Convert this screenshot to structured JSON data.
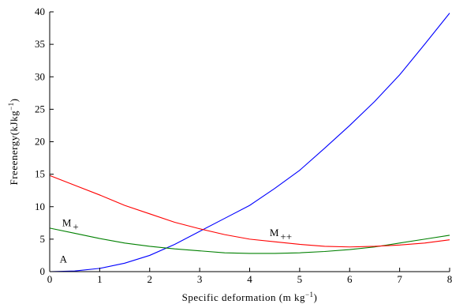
{
  "chart_data": {
    "type": "line",
    "xlabel": {
      "main": "Specific deformation (m kg",
      "sup": "−1",
      "close": ")"
    },
    "ylabel": {
      "main": "Freeenergy(kJkg",
      "sup": "−1",
      "close": ")"
    },
    "xlim": [
      0,
      8
    ],
    "ylim": [
      0,
      40
    ],
    "xticks": [
      0,
      1,
      2,
      3,
      4,
      5,
      6,
      7,
      8
    ],
    "yticks": [
      0,
      5,
      10,
      15,
      20,
      25,
      30,
      35,
      40
    ],
    "grid": false,
    "series": [
      {
        "name": "A",
        "color": "#0000ff",
        "x": [
          0,
          0.5,
          1,
          1.5,
          2,
          2.5,
          3,
          3.5,
          4,
          4.5,
          5,
          5.5,
          6,
          6.5,
          7,
          7.5,
          8
        ],
        "y": [
          0,
          0.1,
          0.5,
          1.3,
          2.5,
          4.2,
          6.2,
          8.2,
          10.2,
          12.8,
          15.6,
          19.0,
          22.5,
          26.2,
          30.3,
          35.0,
          39.8
        ]
      },
      {
        "name": "M+",
        "color": "#008000",
        "x": [
          0,
          0.5,
          1,
          1.5,
          2,
          2.5,
          3,
          3.5,
          4,
          4.5,
          5,
          5.5,
          6,
          6.5,
          7,
          7.5,
          8
        ],
        "y": [
          6.7,
          5.9,
          5.1,
          4.4,
          3.9,
          3.5,
          3.2,
          2.9,
          2.8,
          2.8,
          2.9,
          3.1,
          3.4,
          3.8,
          4.4,
          5.0,
          5.6
        ]
      },
      {
        "name": "M++",
        "color": "#ff0000",
        "x": [
          0,
          0.5,
          1,
          1.5,
          2,
          2.5,
          3,
          3.5,
          4,
          4.5,
          5,
          5.5,
          6,
          6.5,
          7,
          7.5,
          8
        ],
        "y": [
          14.8,
          13.3,
          11.8,
          10.2,
          8.9,
          7.6,
          6.6,
          5.7,
          5.0,
          4.6,
          4.2,
          3.9,
          3.8,
          3.9,
          4.1,
          4.4,
          4.9
        ]
      }
    ],
    "annotations": [
      {
        "name": "M+",
        "main": "M",
        "sub": "+",
        "at": [
          0.25,
          7.0
        ]
      },
      {
        "name": "M++",
        "main": "M",
        "sub": "++",
        "at": [
          4.4,
          5.5
        ]
      },
      {
        "name": "A",
        "main": "A",
        "sub": "",
        "at": [
          0.2,
          1.4
        ]
      }
    ]
  }
}
